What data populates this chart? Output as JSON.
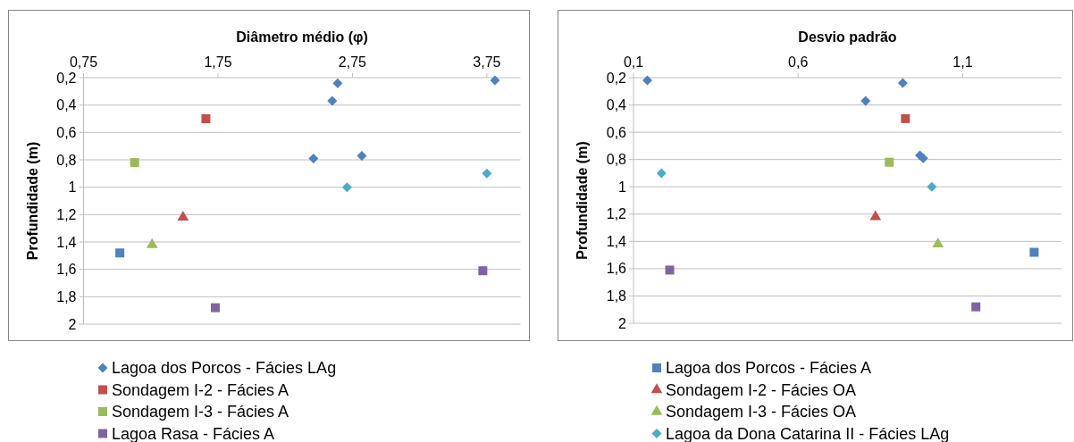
{
  "chart_data": [
    {
      "type": "scatter",
      "xlabel": "Diâmetro médio (φ)",
      "ylabel": "Profundidade (m)",
      "xlim": [
        0.75,
        4.0
      ],
      "xticks": [
        {
          "value": 0.75,
          "label": "0,75"
        },
        {
          "value": 1.75,
          "label": "1,75"
        },
        {
          "value": 2.75,
          "label": "2,75"
        },
        {
          "value": 3.75,
          "label": "3,75"
        }
      ],
      "ylim": [
        2,
        0.2
      ],
      "yticks": [
        {
          "value": 0.2,
          "label": "0,2"
        },
        {
          "value": 0.4,
          "label": "0,4"
        },
        {
          "value": 0.6,
          "label": "0,6"
        },
        {
          "value": 0.8,
          "label": "0,8"
        },
        {
          "value": 1,
          "label": "1"
        },
        {
          "value": 1.2,
          "label": "1,2"
        },
        {
          "value": 1.4,
          "label": "1,4"
        },
        {
          "value": 1.6,
          "label": "1,6"
        },
        {
          "value": 1.8,
          "label": "1,8"
        },
        {
          "value": 2,
          "label": "2"
        }
      ],
      "grid": "y",
      "legend": "bottom",
      "series": [
        {
          "name": "Lagoa dos Porcos - Fácies LAg",
          "color": "#4f81bd",
          "marker": "diamond",
          "x": [
            2.64,
            3.81,
            2.6,
            2.46,
            2.82
          ],
          "values": [
            0.24,
            0.22,
            0.37,
            0.79,
            0.77
          ]
        },
        {
          "name": "Sondagem I-2 - Fácies A",
          "color": "#c0504d",
          "marker": "square",
          "x": [
            1.66
          ],
          "values": [
            0.5
          ]
        },
        {
          "name": "Sondagem I-3 - Fácies A",
          "color": "#9bbb59",
          "marker": "square",
          "x": [
            1.13
          ],
          "values": [
            0.82
          ]
        },
        {
          "name": "Lagoa Rasa - Fácies A",
          "color": "#8064a2",
          "marker": "square",
          "x": [
            1.73,
            3.72
          ],
          "values": [
            1.88,
            1.61
          ]
        },
        {
          "name": "Lagoa dos Porcos - Fácies A",
          "color": "#4f81bd",
          "marker": "square",
          "x": [
            1.02
          ],
          "values": [
            1.48
          ]
        },
        {
          "name": "Sondagem I-2 - Fácies OA",
          "color": "#c0504d",
          "marker": "triangle",
          "x": [
            1.49
          ],
          "values": [
            1.22
          ]
        },
        {
          "name": "Sondagem I-3 - Fácies OA",
          "color": "#9bbb59",
          "marker": "triangle",
          "x": [
            1.26
          ],
          "values": [
            1.42
          ]
        },
        {
          "name": "Lagoa da Dona Catarina II - Fácies LAg",
          "color": "#4bacc6",
          "marker": "diamond",
          "x": [
            2.71,
            3.75
          ],
          "values": [
            1.0,
            0.9
          ]
        }
      ]
    },
    {
      "type": "scatter",
      "xlabel": "Desvio padrão",
      "ylabel": "Profundidade (m)",
      "xlim": [
        0.1,
        1.4
      ],
      "xticks": [
        {
          "value": 0.1,
          "label": "0,1"
        },
        {
          "value": 0.6,
          "label": "0,6"
        },
        {
          "value": 1.1,
          "label": "1,1"
        }
      ],
      "ylim": [
        2,
        0.2
      ],
      "yticks": [
        {
          "value": 0.2,
          "label": "0,2"
        },
        {
          "value": 0.4,
          "label": "0,4"
        },
        {
          "value": 0.6,
          "label": "0,6"
        },
        {
          "value": 0.8,
          "label": "0,8"
        },
        {
          "value": 1,
          "label": "1"
        },
        {
          "value": 1.2,
          "label": "1,2"
        },
        {
          "value": 1.4,
          "label": "1,4"
        },
        {
          "value": 1.6,
          "label": "1,6"
        },
        {
          "value": 1.8,
          "label": "1,8"
        },
        {
          "value": 2,
          "label": "2"
        }
      ],
      "grid": "y",
      "series": [
        {
          "color": "#4f81bd",
          "marker": "diamond",
          "x": [
            0.142,
            0.918,
            0.805,
            0.97,
            0.98
          ],
          "values": [
            0.22,
            0.24,
            0.37,
            0.77,
            0.79
          ]
        },
        {
          "color": "#c0504d",
          "marker": "square",
          "x": [
            0.926
          ],
          "values": [
            0.5
          ]
        },
        {
          "color": "#9bbb59",
          "marker": "square",
          "x": [
            0.877
          ],
          "values": [
            0.82
          ]
        },
        {
          "color": "#8064a2",
          "marker": "square",
          "x": [
            0.21,
            1.14
          ],
          "values": [
            1.61,
            1.88
          ]
        },
        {
          "color": "#4f81bd",
          "marker": "square",
          "x": [
            1.317
          ],
          "values": [
            1.48
          ]
        },
        {
          "color": "#c0504d",
          "marker": "triangle",
          "x": [
            0.835
          ],
          "values": [
            1.22
          ]
        },
        {
          "color": "#9bbb59",
          "marker": "triangle",
          "x": [
            1.025
          ],
          "values": [
            1.42
          ]
        },
        {
          "color": "#4bacc6",
          "marker": "diamond",
          "x": [
            0.185,
            1.006
          ],
          "values": [
            0.9,
            1.0
          ]
        }
      ]
    }
  ]
}
